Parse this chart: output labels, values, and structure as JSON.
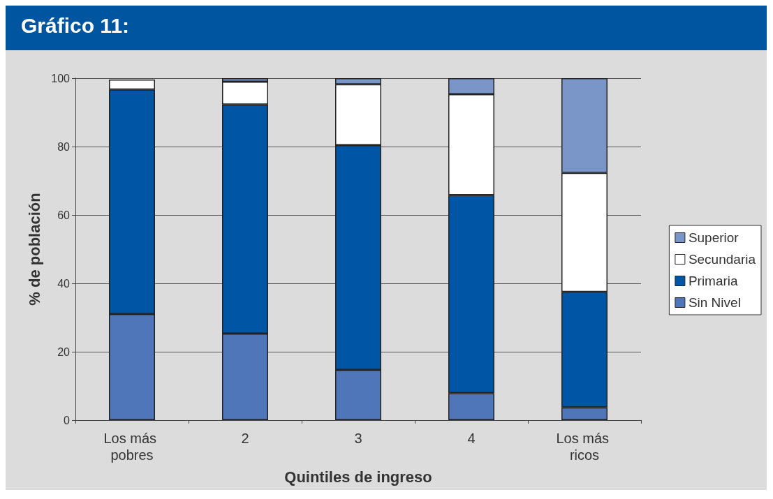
{
  "chart_data": {
    "type": "bar",
    "title": "Gráfico 11:",
    "xlabel": "Quintiles de ingreso",
    "ylabel": "% de población",
    "categories": [
      "Los más pobres",
      "2",
      "3",
      "4",
      "Los más ricos"
    ],
    "stacked": true,
    "series": [
      {
        "name": "Sin Nivel",
        "color": "#4f76b8",
        "values": [
          31.0,
          25.3,
          14.7,
          7.9,
          3.7
        ]
      },
      {
        "name": "Primaria",
        "color": "#0055a4",
        "values": [
          65.7,
          67.0,
          65.7,
          57.9,
          33.8
        ]
      },
      {
        "name": "Secundaria",
        "color": "#ffffff",
        "values": [
          2.9,
          6.7,
          17.8,
          29.5,
          34.8
        ]
      },
      {
        "name": "Superior",
        "color": "#7a96c8",
        "values": [
          null,
          1.0,
          1.8,
          4.7,
          27.7
        ]
      }
    ],
    "ylim": [
      0,
      100
    ],
    "yticks": [
      0,
      20,
      40,
      60,
      80,
      100
    ],
    "grid": "y",
    "legend": "right"
  }
}
